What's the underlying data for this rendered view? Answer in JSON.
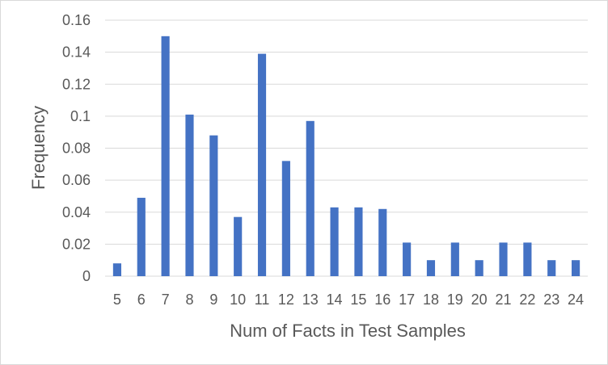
{
  "chart_data": {
    "type": "bar",
    "title": "",
    "xlabel": "Num of Facts in Test Samples",
    "ylabel": "Frequency",
    "categories": [
      "5",
      "6",
      "7",
      "8",
      "9",
      "10",
      "11",
      "12",
      "13",
      "14",
      "15",
      "16",
      "17",
      "18",
      "19",
      "20",
      "21",
      "22",
      "23",
      "24"
    ],
    "values": [
      0.008,
      0.049,
      0.15,
      0.101,
      0.088,
      0.037,
      0.139,
      0.072,
      0.097,
      0.043,
      0.043,
      0.042,
      0.021,
      0.01,
      0.021,
      0.01,
      0.021,
      0.021,
      0.01,
      0.01
    ],
    "ylim": [
      0,
      0.16
    ],
    "yticks": [
      "0",
      "0.02",
      "0.04",
      "0.06",
      "0.08",
      "0.1",
      "0.12",
      "0.14",
      "0.16"
    ],
    "grid": true,
    "legend": "none",
    "colors": {
      "bar": "#4472c4",
      "grid": "#d9d9d9",
      "text": "#595959"
    }
  }
}
